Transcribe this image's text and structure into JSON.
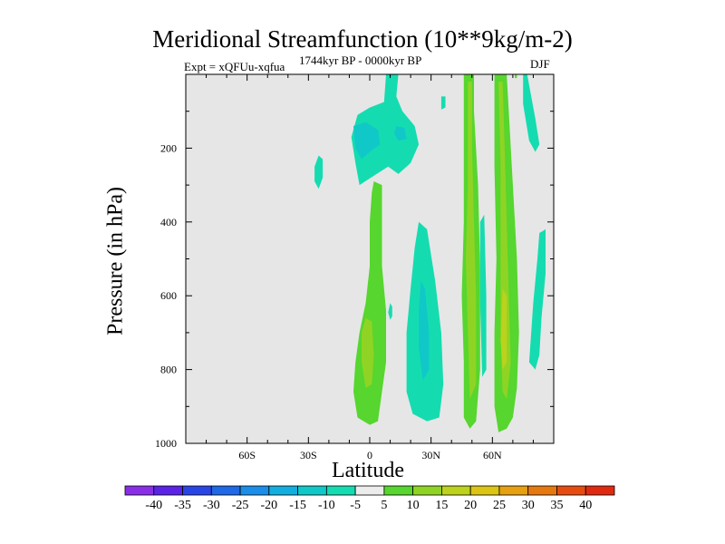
{
  "title": "Meridional Streamfunction (10**9kg/m-2)",
  "subtitle_left": "Expt = xQFUu-xqfua",
  "subtitle_center": "1744kyr BP - 0000kyr BP",
  "subtitle_right": "DJF",
  "chart_data": {
    "type": "heatmap",
    "title": "Meridional Streamfunction (10**9kg/m-2)",
    "xlabel": "Latitude",
    "ylabel": "Pressure (in hPa)",
    "xlim": [
      -90,
      90
    ],
    "ylim": [
      1000,
      0
    ],
    "x_ticks": [
      {
        "value": -60,
        "label": "60S"
      },
      {
        "value": -30,
        "label": "30S"
      },
      {
        "value": 0,
        "label": "0"
      },
      {
        "value": 30,
        "label": "30N"
      },
      {
        "value": 60,
        "label": "60N"
      }
    ],
    "y_ticks": [
      {
        "value": 200,
        "label": "200"
      },
      {
        "value": 400,
        "label": "400"
      },
      {
        "value": 600,
        "label": "600"
      },
      {
        "value": 800,
        "label": "800"
      },
      {
        "value": 1000,
        "label": "1000"
      }
    ],
    "background_color": "#e6e6e6",
    "colorbar": {
      "levels": [
        "-40",
        "-35",
        "-30",
        "-25",
        "-20",
        "-15",
        "-10",
        "-5",
        "5",
        "10",
        "15",
        "20",
        "25",
        "30",
        "35",
        "40"
      ],
      "colors": [
        "#8a2ee8",
        "#5a23e6",
        "#2a45e6",
        "#1f68e6",
        "#1a8ee8",
        "#12aee0",
        "#10c8c8",
        "#14dcb0",
        "#ececec",
        "#56d62e",
        "#8fd424",
        "#bcd21c",
        "#dcc414",
        "#e6a010",
        "#e67810",
        "#e64c10",
        "#e02a10"
      ]
    },
    "regions": [
      {
        "id": "upper-trop-eq",
        "sign": "negative",
        "color": "#14dcb0",
        "points": [
          [
            8,
            0
          ],
          [
            14,
            0
          ],
          [
            13,
            60
          ],
          [
            16,
            100
          ],
          [
            22,
            140
          ],
          [
            24,
            190
          ],
          [
            20,
            240
          ],
          [
            14,
            270
          ],
          [
            9,
            250
          ],
          [
            2,
            275
          ],
          [
            -5,
            300
          ],
          [
            -7,
            240
          ],
          [
            -9,
            170
          ],
          [
            -6,
            110
          ],
          [
            0,
            90
          ],
          [
            7,
            75
          ]
        ]
      },
      {
        "id": "upper-trop-core",
        "sign": "negative",
        "color": "#10c8c8",
        "points": [
          [
            -8,
            140
          ],
          [
            -2,
            130
          ],
          [
            4,
            150
          ],
          [
            5,
            190
          ],
          [
            0,
            210
          ],
          [
            -4,
            230
          ],
          [
            -7,
            200
          ]
        ]
      },
      {
        "id": "upper-trop-core-2",
        "sign": "negative",
        "color": "#10c8c8",
        "points": [
          [
            13,
            140
          ],
          [
            17,
            145
          ],
          [
            18,
            175
          ],
          [
            14,
            180
          ],
          [
            12,
            160
          ]
        ]
      },
      {
        "id": "sh-small-neg",
        "sign": "negative",
        "color": "#14dcb0",
        "points": [
          [
            -25,
            220
          ],
          [
            -23,
            230
          ],
          [
            -23,
            280
          ],
          [
            -25,
            310
          ],
          [
            -27,
            290
          ],
          [
            -27,
            250
          ]
        ]
      },
      {
        "id": "sh-deep-pos",
        "sign": "positive",
        "color": "#56d62e",
        "points": [
          [
            2,
            290
          ],
          [
            6,
            300
          ],
          [
            6,
            440
          ],
          [
            6,
            520
          ],
          [
            8,
            640
          ],
          [
            8,
            780
          ],
          [
            6,
            860
          ],
          [
            4,
            940
          ],
          [
            0,
            950
          ],
          [
            -6,
            930
          ],
          [
            -8,
            860
          ],
          [
            -7,
            780
          ],
          [
            -5,
            700
          ],
          [
            -2,
            620
          ],
          [
            0,
            520
          ],
          [
            0,
            400
          ],
          [
            1,
            320
          ]
        ]
      },
      {
        "id": "sh-deep-pos-core",
        "sign": "positive",
        "color": "#8fd424",
        "points": [
          [
            -2,
            660
          ],
          [
            1,
            670
          ],
          [
            2,
            760
          ],
          [
            1,
            840
          ],
          [
            -2,
            850
          ],
          [
            -4,
            780
          ],
          [
            -4,
            700
          ]
        ]
      },
      {
        "id": "nh-tropics-neg",
        "sign": "negative",
        "color": "#14dcb0",
        "points": [
          [
            24,
            400
          ],
          [
            28,
            420
          ],
          [
            32,
            560
          ],
          [
            35,
            700
          ],
          [
            36,
            840
          ],
          [
            34,
            930
          ],
          [
            28,
            940
          ],
          [
            21,
            920
          ],
          [
            18,
            860
          ],
          [
            18,
            700
          ],
          [
            20,
            580
          ],
          [
            22,
            470
          ]
        ]
      },
      {
        "id": "nh-tropics-neg-core",
        "sign": "negative",
        "color": "#10c8c8",
        "points": [
          [
            25,
            560
          ],
          [
            27,
            580
          ],
          [
            29,
            700
          ],
          [
            29,
            800
          ],
          [
            26,
            830
          ],
          [
            24,
            740
          ],
          [
            24,
            640
          ]
        ]
      },
      {
        "id": "small-neg-blob",
        "sign": "negative",
        "color": "#14dcb0",
        "points": [
          [
            10,
            620
          ],
          [
            11,
            630
          ],
          [
            11,
            655
          ],
          [
            10,
            665
          ],
          [
            9,
            645
          ]
        ]
      },
      {
        "id": "nh-pos-1",
        "sign": "positive",
        "color": "#56d62e",
        "points": [
          [
            46,
            0
          ],
          [
            51,
            0
          ],
          [
            51,
            100
          ],
          [
            53,
            300
          ],
          [
            54,
            520
          ],
          [
            54,
            700
          ],
          [
            54,
            800
          ],
          [
            52,
            940
          ],
          [
            49,
            960
          ],
          [
            46,
            930
          ],
          [
            46,
            780
          ],
          [
            45,
            600
          ],
          [
            46,
            400
          ],
          [
            46,
            200
          ]
        ]
      },
      {
        "id": "nh-pos-1-core",
        "sign": "positive",
        "color": "#8fd424",
        "points": [
          [
            48,
            20
          ],
          [
            50,
            20
          ],
          [
            50,
            200
          ],
          [
            51,
            400
          ],
          [
            52,
            600
          ],
          [
            52,
            840
          ],
          [
            49,
            880
          ],
          [
            48,
            700
          ],
          [
            47,
            500
          ],
          [
            48,
            300
          ]
        ]
      },
      {
        "id": "nh-neg-mid",
        "sign": "negative",
        "color": "#14dcb0",
        "points": [
          [
            54,
            400
          ],
          [
            56,
            380
          ],
          [
            57,
            600
          ],
          [
            57,
            800
          ],
          [
            55,
            820
          ],
          [
            54,
            620
          ]
        ]
      },
      {
        "id": "nh-pos-2",
        "sign": "positive",
        "color": "#56d62e",
        "points": [
          [
            61,
            0
          ],
          [
            67,
            0
          ],
          [
            68,
            100
          ],
          [
            70,
            300
          ],
          [
            72,
            500
          ],
          [
            73,
            700
          ],
          [
            72,
            850
          ],
          [
            70,
            930
          ],
          [
            67,
            960
          ],
          [
            63,
            970
          ],
          [
            61,
            900
          ],
          [
            61,
            700
          ],
          [
            62,
            500
          ],
          [
            61,
            250
          ]
        ]
      },
      {
        "id": "nh-pos-2-core",
        "sign": "positive",
        "color": "#8fd424",
        "points": [
          [
            63,
            20
          ],
          [
            65,
            20
          ],
          [
            66,
            200
          ],
          [
            67,
            400
          ],
          [
            68,
            600
          ],
          [
            69,
            780
          ],
          [
            67,
            880
          ],
          [
            65,
            860
          ],
          [
            64,
            700
          ],
          [
            64,
            500
          ],
          [
            64,
            250
          ]
        ]
      },
      {
        "id": "nh-pos-2-peak",
        "sign": "positive",
        "color": "#bcd21c",
        "points": [
          [
            65,
            580
          ],
          [
            67,
            600
          ],
          [
            67,
            780
          ],
          [
            65,
            800
          ],
          [
            64,
            720
          ]
        ]
      },
      {
        "id": "nh-high-neg",
        "sign": "negative",
        "color": "#14dcb0",
        "points": [
          [
            75,
            0
          ],
          [
            77,
            0
          ],
          [
            81,
            120
          ],
          [
            83,
            190
          ],
          [
            81,
            210
          ],
          [
            78,
            180
          ],
          [
            75,
            80
          ]
        ]
      },
      {
        "id": "nh-high-neg-low",
        "sign": "negative",
        "color": "#14dcb0",
        "points": [
          [
            83,
            430
          ],
          [
            86,
            420
          ],
          [
            86,
            540
          ],
          [
            84,
            660
          ],
          [
            83,
            760
          ],
          [
            81,
            800
          ],
          [
            78,
            780
          ],
          [
            80,
            620
          ],
          [
            82,
            500
          ]
        ]
      },
      {
        "id": "eq-upper-neg-small",
        "sign": "negative",
        "color": "#14dcb0",
        "points": [
          [
            35,
            60
          ],
          [
            37,
            60
          ],
          [
            37,
            90
          ],
          [
            35,
            95
          ]
        ]
      },
      {
        "id": "nh-pos-top-thin",
        "sign": "positive",
        "color": "#56d62e",
        "points": [
          [
            71,
            0
          ],
          [
            72,
            0
          ],
          [
            72,
            10
          ],
          [
            71,
            10
          ]
        ]
      }
    ]
  }
}
